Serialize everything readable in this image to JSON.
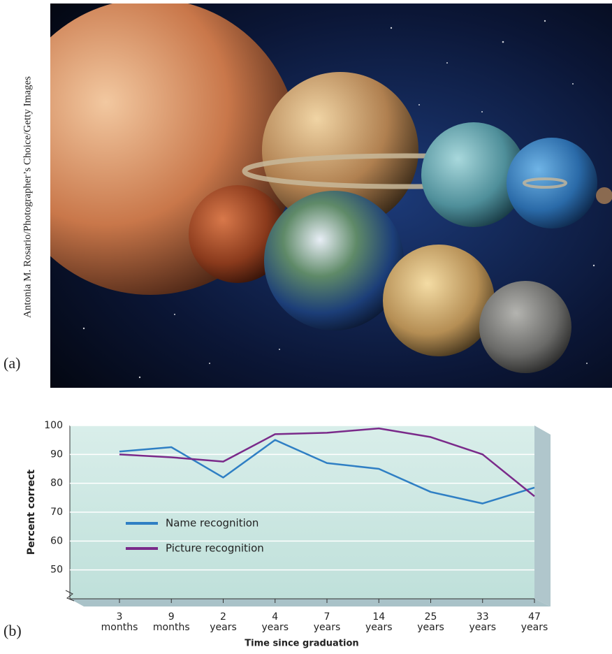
{
  "figure": {
    "label_a": "(a)",
    "label_b": "(b)",
    "photo_credit": "Antonia M. Rosario/Photographer’s Choice/Getty Images"
  },
  "chart_data": {
    "type": "line",
    "ylabel": "Percent correct",
    "xlabel": "Time since graduation",
    "categories": [
      [
        "3",
        "months"
      ],
      [
        "9",
        "months"
      ],
      [
        "2",
        "years"
      ],
      [
        "4",
        "years"
      ],
      [
        "7",
        "years"
      ],
      [
        "14",
        "years"
      ],
      [
        "25",
        "years"
      ],
      [
        "33",
        "years"
      ],
      [
        "47",
        "years"
      ]
    ],
    "series": [
      {
        "name": "Name recognition",
        "color": "#2f7fc4",
        "values": [
          91,
          92.5,
          82,
          95,
          87,
          85,
          77,
          73,
          78.5
        ]
      },
      {
        "name": "Picture recognition",
        "color": "#7a2a8a",
        "values": [
          90,
          89,
          87.5,
          97,
          97.5,
          99,
          96,
          90,
          75.5
        ]
      }
    ],
    "ylim": [
      40,
      100
    ],
    "yticks": [
      50,
      60,
      70,
      80,
      90,
      100
    ],
    "grid": true
  }
}
